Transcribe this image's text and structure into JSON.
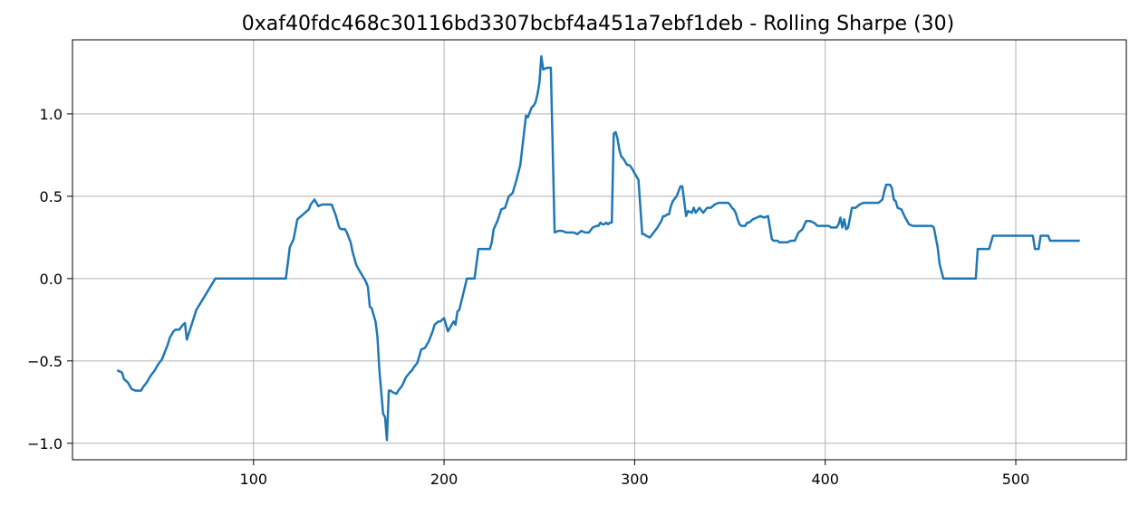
{
  "chart_data": {
    "type": "line",
    "title": "0xaf40fdc468c30116bd3307bcbf4a451a7ebf1deb - Rolling Sharpe (30)",
    "xlabel": "",
    "ylabel": "",
    "xlim": [
      5,
      558
    ],
    "ylim": [
      -1.1,
      1.45
    ],
    "xticks": [
      100,
      200,
      300,
      400,
      500
    ],
    "xtick_labels": [
      "100",
      "200",
      "300",
      "400",
      "500"
    ],
    "yticks": [
      -1.0,
      -0.5,
      0.0,
      0.5,
      1.0
    ],
    "ytick_labels": [
      "−1.0",
      "−0.5",
      "0.0",
      "0.5",
      "1.0"
    ],
    "grid": true,
    "line_color": "#1f77b4",
    "series": [
      {
        "x": [
          29,
          31,
          32,
          34,
          36,
          38,
          41,
          42,
          44,
          46,
          48,
          49,
          50,
          52,
          55,
          56,
          58,
          59,
          60,
          61,
          63,
          64,
          65,
          70,
          80,
          90,
          100,
          110,
          114,
          115,
          116,
          117,
          119,
          121,
          123,
          125,
          126,
          127,
          128,
          129,
          130,
          132,
          134,
          136,
          138,
          140,
          141,
          143,
          144,
          145,
          146,
          148,
          149,
          150,
          151,
          152,
          153,
          154,
          156,
          157,
          158,
          159,
          160,
          161,
          162,
          164,
          165,
          166,
          168,
          169,
          170,
          171,
          172,
          173,
          175,
          176,
          178,
          180,
          182,
          183,
          184,
          186,
          187,
          188,
          190,
          191,
          192,
          193,
          194,
          195,
          196,
          197,
          198,
          199,
          200,
          202,
          205,
          206,
          207,
          208,
          212,
          215,
          216,
          218,
          220,
          222,
          223,
          224,
          225,
          226,
          228,
          230,
          232,
          234,
          236,
          238,
          240,
          241,
          242,
          243,
          244,
          246,
          247,
          248,
          249,
          250,
          251,
          252,
          254,
          256,
          258,
          260,
          262,
          264,
          266,
          268,
          270,
          272,
          274,
          276,
          278,
          280,
          281,
          282,
          283,
          284,
          285,
          286,
          287,
          288,
          289,
          290,
          291,
          292,
          293,
          294,
          296,
          297,
          298,
          300,
          302,
          304,
          305,
          306,
          308,
          310,
          312,
          314,
          315,
          316,
          317,
          318,
          319,
          320,
          322,
          323,
          324,
          325,
          327,
          328,
          330,
          331,
          332,
          334,
          336,
          338,
          340,
          342,
          344,
          346,
          348,
          349,
          350,
          351,
          352,
          353,
          354,
          355,
          356,
          357,
          358,
          359,
          360,
          362,
          364,
          366,
          368,
          370,
          372,
          373,
          375,
          376,
          378,
          380,
          382,
          384,
          386,
          388,
          390,
          392,
          394,
          396,
          398,
          400,
          402,
          403,
          404,
          405,
          406,
          407,
          408,
          409,
          410,
          411,
          412,
          414,
          416,
          418,
          420,
          422,
          424,
          426,
          427,
          428,
          429,
          430,
          431,
          432,
          433,
          434,
          435,
          436,
          437,
          438,
          440,
          442,
          444,
          446,
          448,
          450,
          452,
          454,
          455,
          456,
          457,
          458,
          459,
          460,
          462,
          464,
          466,
          468,
          470,
          472,
          474,
          476,
          478,
          479,
          480,
          482,
          484,
          486,
          487,
          488,
          490,
          495,
          500,
          505,
          508,
          509,
          510,
          512,
          513,
          514,
          516,
          517,
          518,
          520,
          525,
          530,
          533
        ],
        "y": [
          -0.56,
          -0.57,
          -0.61,
          -0.63,
          -0.67,
          -0.68,
          -0.68,
          -0.66,
          -0.63,
          -0.59,
          -0.56,
          -0.54,
          -0.52,
          -0.49,
          -0.4,
          -0.36,
          -0.32,
          -0.31,
          -0.31,
          -0.31,
          -0.28,
          -0.27,
          -0.37,
          -0.19,
          0.0,
          0.0,
          0.0,
          0.0,
          0.0,
          0.0,
          0.0,
          0.0,
          0.19,
          0.24,
          0.36,
          0.38,
          0.39,
          0.4,
          0.41,
          0.42,
          0.45,
          0.48,
          0.44,
          0.45,
          0.45,
          0.45,
          0.45,
          0.39,
          0.35,
          0.31,
          0.3,
          0.3,
          0.28,
          0.25,
          0.22,
          0.16,
          0.12,
          0.08,
          0.04,
          0.02,
          0.0,
          -0.02,
          -0.05,
          -0.17,
          -0.18,
          -0.26,
          -0.35,
          -0.55,
          -0.82,
          -0.84,
          -0.98,
          -0.68,
          -0.68,
          -0.69,
          -0.7,
          -0.68,
          -0.65,
          -0.6,
          -0.57,
          -0.56,
          -0.54,
          -0.51,
          -0.47,
          -0.43,
          -0.42,
          -0.4,
          -0.38,
          -0.35,
          -0.32,
          -0.28,
          -0.27,
          -0.26,
          -0.26,
          -0.25,
          -0.24,
          -0.32,
          -0.26,
          -0.28,
          -0.2,
          -0.19,
          0.0,
          0.0,
          0.0,
          0.18,
          0.18,
          0.18,
          0.18,
          0.18,
          0.22,
          0.3,
          0.35,
          0.42,
          0.43,
          0.5,
          0.52,
          0.6,
          0.69,
          0.79,
          0.89,
          0.99,
          0.98,
          1.04,
          1.05,
          1.07,
          1.12,
          1.19,
          1.35,
          1.27,
          1.28,
          1.28,
          0.28,
          0.29,
          0.29,
          0.28,
          0.28,
          0.28,
          0.27,
          0.29,
          0.28,
          0.28,
          0.31,
          0.32,
          0.32,
          0.34,
          0.33,
          0.33,
          0.34,
          0.33,
          0.34,
          0.34,
          0.88,
          0.89,
          0.85,
          0.78,
          0.74,
          0.73,
          0.69,
          0.69,
          0.68,
          0.64,
          0.6,
          0.27,
          0.27,
          0.26,
          0.25,
          0.28,
          0.31,
          0.35,
          0.38,
          0.38,
          0.39,
          0.39,
          0.44,
          0.47,
          0.5,
          0.53,
          0.56,
          0.56,
          0.38,
          0.41,
          0.4,
          0.43,
          0.4,
          0.43,
          0.4,
          0.43,
          0.43,
          0.45,
          0.46,
          0.46,
          0.46,
          0.46,
          0.45,
          0.43,
          0.42,
          0.4,
          0.36,
          0.33,
          0.32,
          0.32,
          0.32,
          0.34,
          0.34,
          0.36,
          0.37,
          0.38,
          0.37,
          0.38,
          0.24,
          0.23,
          0.23,
          0.22,
          0.22,
          0.22,
          0.23,
          0.23,
          0.28,
          0.3,
          0.35,
          0.35,
          0.34,
          0.32,
          0.32,
          0.32,
          0.32,
          0.31,
          0.31,
          0.31,
          0.31,
          0.33,
          0.37,
          0.31,
          0.36,
          0.3,
          0.31,
          0.43,
          0.43,
          0.45,
          0.46,
          0.46,
          0.46,
          0.46,
          0.46,
          0.46,
          0.47,
          0.48,
          0.53,
          0.57,
          0.57,
          0.57,
          0.55,
          0.48,
          0.47,
          0.43,
          0.42,
          0.37,
          0.33,
          0.32,
          0.32,
          0.32,
          0.32,
          0.32,
          0.32,
          0.32,
          0.31,
          0.25,
          0.19,
          0.09,
          0.0,
          0.0,
          0.0,
          0.0,
          0.0,
          0.0,
          0.0,
          0.0,
          0.0,
          0.0,
          0.18,
          0.18,
          0.18,
          0.18,
          0.22,
          0.26,
          0.26,
          0.26,
          0.26,
          0.26,
          0.26,
          0.26,
          0.18,
          0.18,
          0.26,
          0.26,
          0.26,
          0.26,
          0.23,
          0.23,
          0.23,
          0.23,
          0.23
        ]
      }
    ]
  }
}
